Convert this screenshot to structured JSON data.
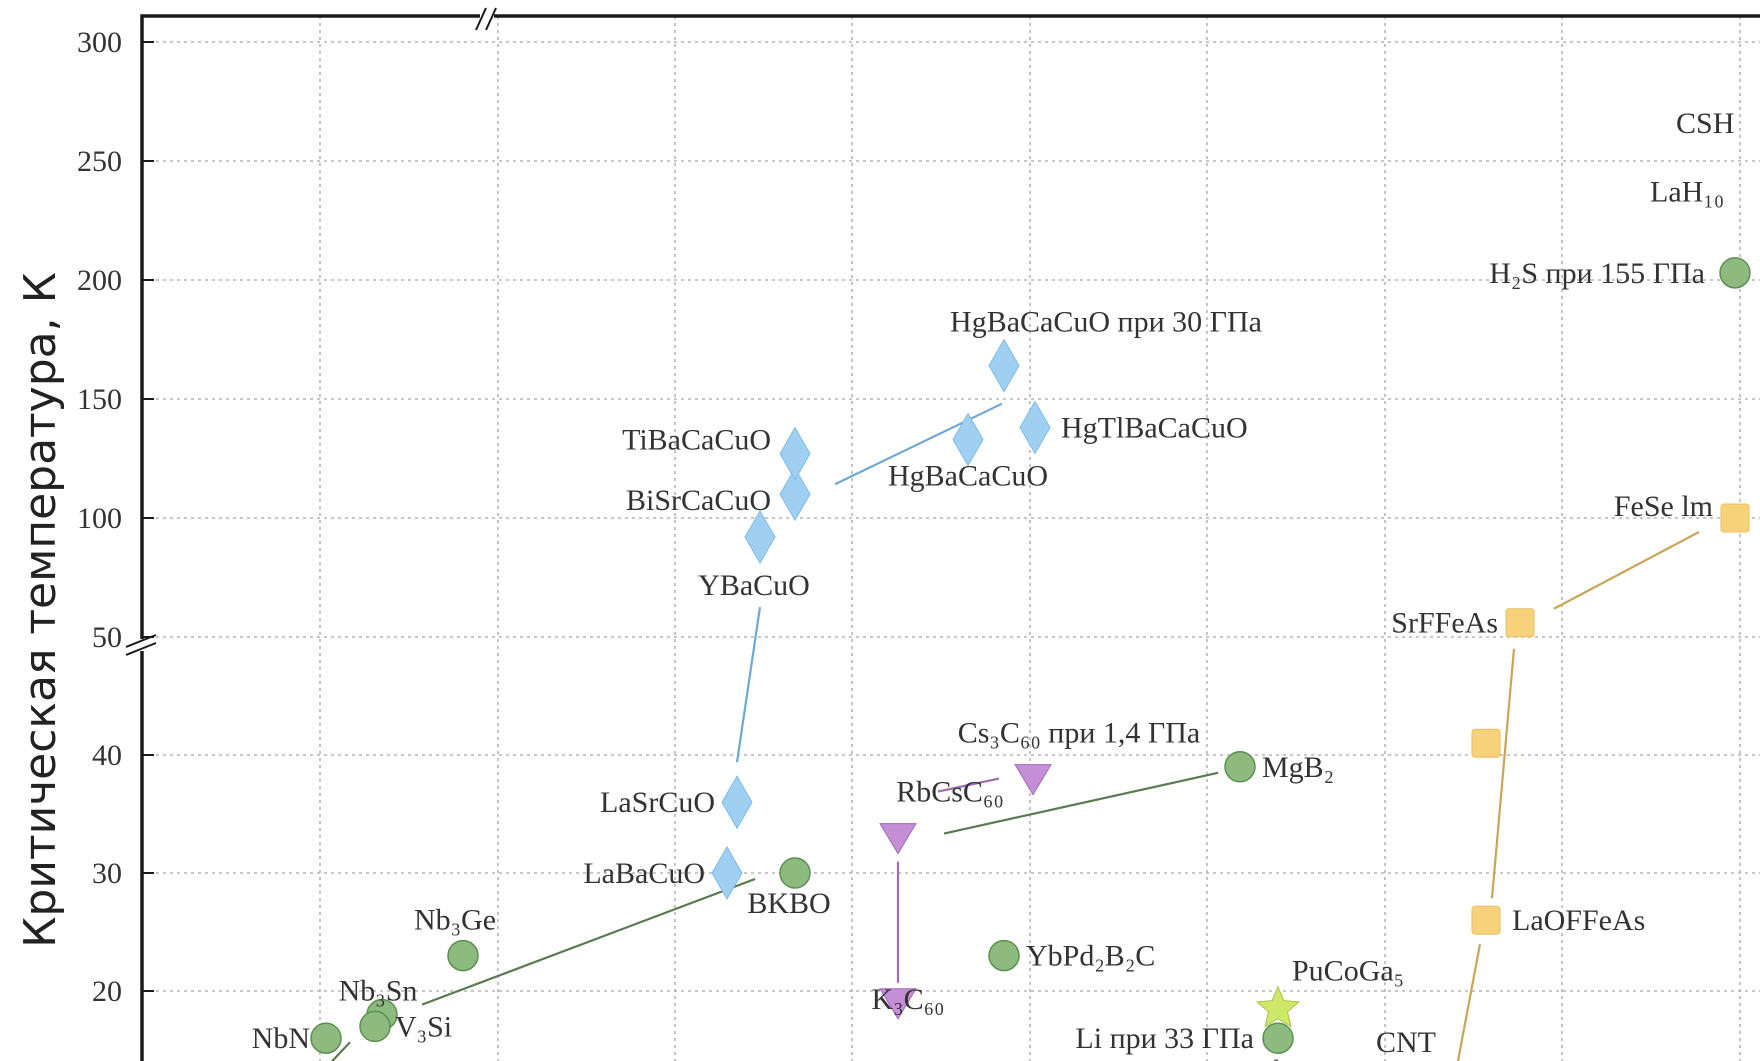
{
  "chart_data": {
    "type": "scatter",
    "title": "",
    "xlabel": "",
    "ylabel": "Критическая температура, К",
    "y_axis_break": true,
    "yticks": [
      "20",
      "30",
      "40",
      "50",
      "100",
      "150",
      "200",
      "250",
      "300"
    ],
    "grid": true,
    "legend": "none",
    "colors": {
      "cuprate": "#9fd0f2",
      "cuprate_line": "#6fa8d4",
      "conventional": "#8cba7f",
      "conventional_edge": "#5d8f52",
      "conventional_line": "#5a7a50",
      "fulleride": "#c48fd6",
      "fulleride_line": "#a06bb4",
      "iron": "#f8d27a",
      "iron_line": "#c9a55a",
      "heavy_fermion": "#cfe86a"
    },
    "series": [
      {
        "group": "cuprate",
        "marker": "diamond",
        "points": [
          {
            "label": "LaBaCuO",
            "y": 30
          },
          {
            "label": "LaSrCuO",
            "y": 36
          },
          {
            "label": "YBaCuO",
            "y": 92
          },
          {
            "label": "BiSrCaCuO",
            "y": 110
          },
          {
            "label": "TiBaCaCuO",
            "y": 127
          },
          {
            "label": "HgBaCaCuO",
            "y": 133
          },
          {
            "label": "HgTlBaCaCuO",
            "y": 138
          },
          {
            "label": "HgBaCaCuO при 30 ГПа",
            "y": 164
          }
        ]
      },
      {
        "group": "conventional",
        "marker": "circle",
        "points": [
          {
            "label": "NbN",
            "y": 16
          },
          {
            "label": "Nb₃Sn",
            "y": 18
          },
          {
            "label": "V₃Si",
            "y": 17
          },
          {
            "label": "Nb₃Ge",
            "y": 23
          },
          {
            "label": "BKBO",
            "y": 30
          },
          {
            "label": "YbPd₂B₂C",
            "y": 23
          },
          {
            "label": "MgB₂",
            "y": 39
          },
          {
            "label": "Li при 33 ГПа",
            "y": 16
          },
          {
            "label": "H₂S при 155 ГПа",
            "y": 203
          }
        ]
      },
      {
        "group": "fulleride",
        "marker": "triangle-down",
        "points": [
          {
            "label": "K₃C₆₀",
            "y": 19
          },
          {
            "label": "RbCsC₆₀",
            "y": 33
          },
          {
            "label": "Cs₃C₆₀ при 1,4 ГПа",
            "y": 38
          }
        ]
      },
      {
        "group": "iron",
        "marker": "square",
        "points": [
          {
            "label": "LaOFFeAs",
            "y": 26
          },
          {
            "label": "",
            "y": 41
          },
          {
            "label": "SrFFeAs",
            "y": 56
          },
          {
            "label": "FeSe lm",
            "y": 100
          }
        ]
      },
      {
        "group": "heavy_fermion",
        "marker": "star",
        "points": [
          {
            "label": "PuCoGa₅",
            "y": 18.5
          }
        ]
      }
    ],
    "other_labels": [
      "CSH",
      "LaH₁₀",
      "CNT"
    ]
  }
}
